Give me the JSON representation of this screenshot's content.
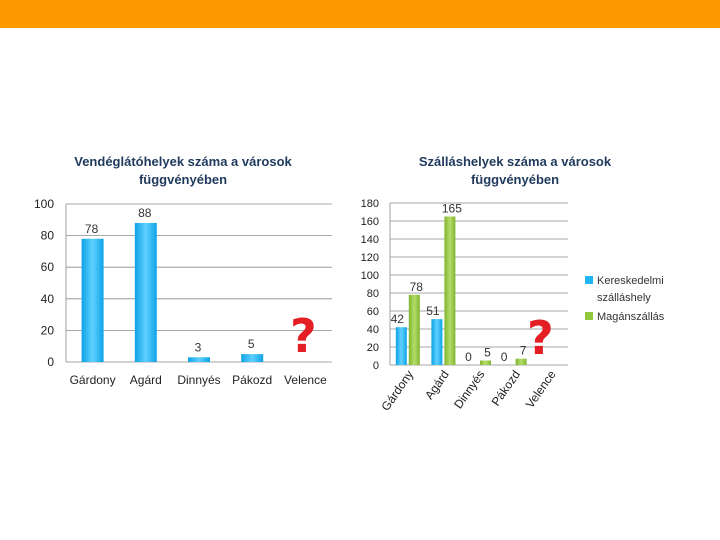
{
  "colors": {
    "top_bar": "#ff9900",
    "series_blue": "#1fb6f5",
    "series_green": "#92c83e",
    "question_mark": "#e31e24"
  },
  "annotations": {
    "question_mark": "?"
  },
  "chart_data": [
    {
      "type": "bar",
      "title_lines": [
        "Vendéglátóhelyek száma a városok",
        "függvényében"
      ],
      "categories": [
        "Gárdony",
        "Agárd",
        "Dinnyés",
        "Pákozd",
        "Velence"
      ],
      "values": [
        78,
        88,
        3,
        5,
        null
      ],
      "data_labels": [
        "78",
        "88",
        "3",
        "5",
        ""
      ],
      "y_ticks": [
        0,
        20,
        40,
        60,
        80,
        100
      ],
      "ylim": [
        0,
        100
      ],
      "grid": true,
      "legend": null
    },
    {
      "type": "bar",
      "title_lines": [
        "Szálláshelyek száma a városok",
        "függvényében"
      ],
      "categories": [
        "Gárdony",
        "Agárd",
        "Dinnyés",
        "Pákozd",
        "Velence"
      ],
      "series": [
        {
          "name": "Kereskedelmi szálláshely",
          "values": [
            42,
            51,
            0,
            0,
            null
          ],
          "data_labels": [
            "42",
            "51",
            "0",
            "0",
            ""
          ]
        },
        {
          "name": "Magánszállás",
          "values": [
            78,
            165,
            5,
            7,
            null
          ],
          "data_labels": [
            "78",
            "165",
            "5",
            "7",
            ""
          ]
        }
      ],
      "legend_lines": [
        [
          "Kereskedelmi",
          "szálláshely"
        ],
        [
          "Magánszállás"
        ]
      ],
      "y_ticks": [
        0,
        20,
        40,
        60,
        80,
        100,
        120,
        140,
        160,
        180
      ],
      "ylim": [
        0,
        180
      ],
      "grid": true,
      "legend": "right"
    }
  ]
}
